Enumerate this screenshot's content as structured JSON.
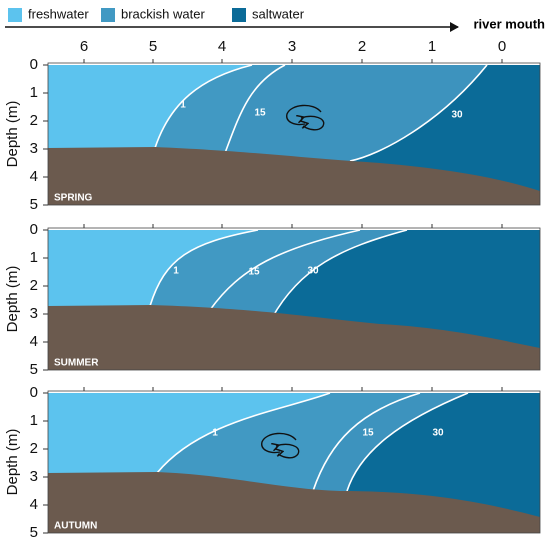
{
  "legend": [
    {
      "label": "freshwater"
    },
    {
      "label": "brackish water"
    },
    {
      "label": "saltwater"
    }
  ],
  "arrow_label": "river mouth",
  "x_ticks": [
    "6",
    "5",
    "4",
    "3",
    "2",
    "1",
    "0"
  ],
  "y_axis_label": "Depth (m)",
  "y_ticks": [
    "0",
    "1",
    "2",
    "3",
    "4",
    "5"
  ],
  "panels": [
    {
      "label": "SPRING",
      "isohalines": [
        "1",
        "15",
        "30"
      ]
    },
    {
      "label": "SUMMER",
      "isohalines": [
        "1",
        "15",
        "30"
      ]
    },
    {
      "label": "AUTUMN",
      "isohalines": [
        "1",
        "15",
        "30"
      ]
    }
  ]
}
